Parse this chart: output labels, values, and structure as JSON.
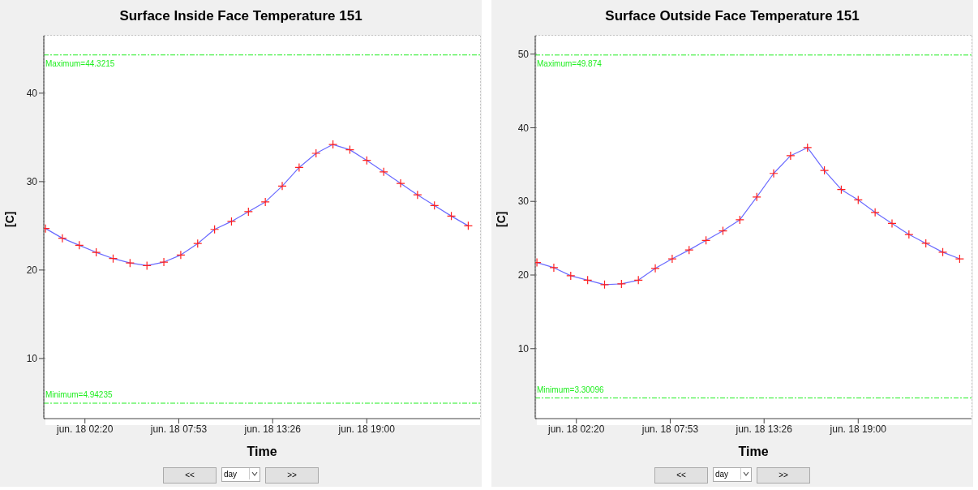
{
  "chart_data": [
    {
      "type": "line",
      "title": "Surface Inside Face Temperature  151",
      "xlabel": "Time",
      "ylabel": "[C]",
      "x": [
        "--06-18T00:00",
        "--06-18T01:00",
        "--06-18T02:00",
        "--06-18T03:00",
        "--06-18T04:00",
        "--06-18T05:00",
        "--06-18T06:00",
        "--06-18T07:00",
        "--06-18T08:00",
        "--06-18T09:00",
        "--06-18T10:00",
        "--06-18T11:00",
        "--06-18T12:00",
        "--06-18T13:00",
        "--06-18T14:00",
        "--06-18T15:00",
        "--06-18T16:00",
        "--06-18T17:00",
        "--06-18T18:00",
        "--06-18T19:00",
        "--06-18T20:00",
        "--06-18T21:00",
        "--06-18T22:00",
        "--06-18T23:00",
        "--06-19T00:00",
        "--06-19T01:00"
      ],
      "series": [
        {
          "color": "#6a6aff",
          "values": [
            24.7,
            23.6,
            22.8,
            22.0,
            21.3,
            20.8,
            20.5,
            20.9,
            21.7,
            23.0,
            24.6,
            25.5,
            26.6,
            27.7,
            29.5,
            31.6,
            33.2,
            34.2,
            33.6,
            32.4,
            31.1,
            29.8,
            28.5,
            27.3,
            26.1,
            25.0
          ]
        }
      ],
      "xlim": [
        "--06-17T23:54",
        "--06-19T01:42"
      ],
      "xticks": [
        {
          "value": "--06-18T02:20",
          "label": "jun. 18 02:20"
        },
        {
          "value": "--06-18T07:53",
          "label": "jun. 18 07:53"
        },
        {
          "value": "--06-18T13:26",
          "label": "jun. 18 13:26"
        },
        {
          "value": "--06-18T19:00",
          "label": "jun. 18 19:00"
        }
      ],
      "ylim": [
        3.2,
        46.5
      ],
      "yticks": [
        10,
        20,
        30,
        40
      ],
      "grid": true,
      "marker": "cross",
      "line_style": "solid",
      "ref_lines": [
        {
          "axis": "y",
          "value": 44.3215,
          "label": "Maximum=44.3215",
          "color": "#22ee22",
          "line_style": "dashed"
        },
        {
          "axis": "y",
          "value": 4.94235,
          "label": "Minimum=4.94235",
          "color": "#22ee22",
          "line_style": "dashed"
        }
      ],
      "annotations": [
        "<<",
        "day",
        ">>"
      ]
    },
    {
      "type": "line",
      "title": "Surface Outside Face Temperature  151",
      "xlabel": "Time",
      "ylabel": "[C]",
      "x": [
        "--06-18T00:00",
        "--06-18T01:00",
        "--06-18T02:00",
        "--06-18T03:00",
        "--06-18T04:00",
        "--06-18T05:00",
        "--06-18T06:00",
        "--06-18T07:00",
        "--06-18T08:00",
        "--06-18T09:00",
        "--06-18T10:00",
        "--06-18T11:00",
        "--06-18T12:00",
        "--06-18T13:00",
        "--06-18T14:00",
        "--06-18T15:00",
        "--06-18T16:00",
        "--06-18T17:00",
        "--06-18T18:00",
        "--06-18T19:00",
        "--06-18T20:00",
        "--06-18T21:00",
        "--06-18T22:00",
        "--06-18T23:00",
        "--06-19T00:00",
        "--06-19T01:00"
      ],
      "series": [
        {
          "color": "#6a6aff",
          "values": [
            21.7,
            21.0,
            19.9,
            19.3,
            18.7,
            18.8,
            19.3,
            20.9,
            22.2,
            23.4,
            24.7,
            26.0,
            27.5,
            30.6,
            33.8,
            36.2,
            37.3,
            34.2,
            31.6,
            30.2,
            28.5,
            27.0,
            25.5,
            24.3,
            23.1,
            22.2
          ]
        }
      ],
      "xlim": [
        "--06-17T23:54",
        "--06-19T01:42"
      ],
      "xticks": [
        {
          "value": "--06-18T02:20",
          "label": "jun. 18 02:20"
        },
        {
          "value": "--06-18T07:53",
          "label": "jun. 18 07:53"
        },
        {
          "value": "--06-18T13:26",
          "label": "jun. 18 13:26"
        },
        {
          "value": "--06-18T19:00",
          "label": "jun. 18 19:00"
        }
      ],
      "ylim": [
        0.5,
        52.5
      ],
      "yticks": [
        10,
        20,
        30,
        40,
        50
      ],
      "grid": true,
      "marker": "cross",
      "line_style": "solid",
      "ref_lines": [
        {
          "axis": "y",
          "value": 49.874,
          "label": "Maximum=49.874",
          "color": "#22ee22",
          "line_style": "dashed"
        },
        {
          "axis": "y",
          "value": 3.30096,
          "label": "Minimum=3.30096",
          "color": "#22ee22",
          "line_style": "dashed"
        }
      ],
      "annotations": [
        "<<",
        "day",
        ">>"
      ]
    }
  ]
}
